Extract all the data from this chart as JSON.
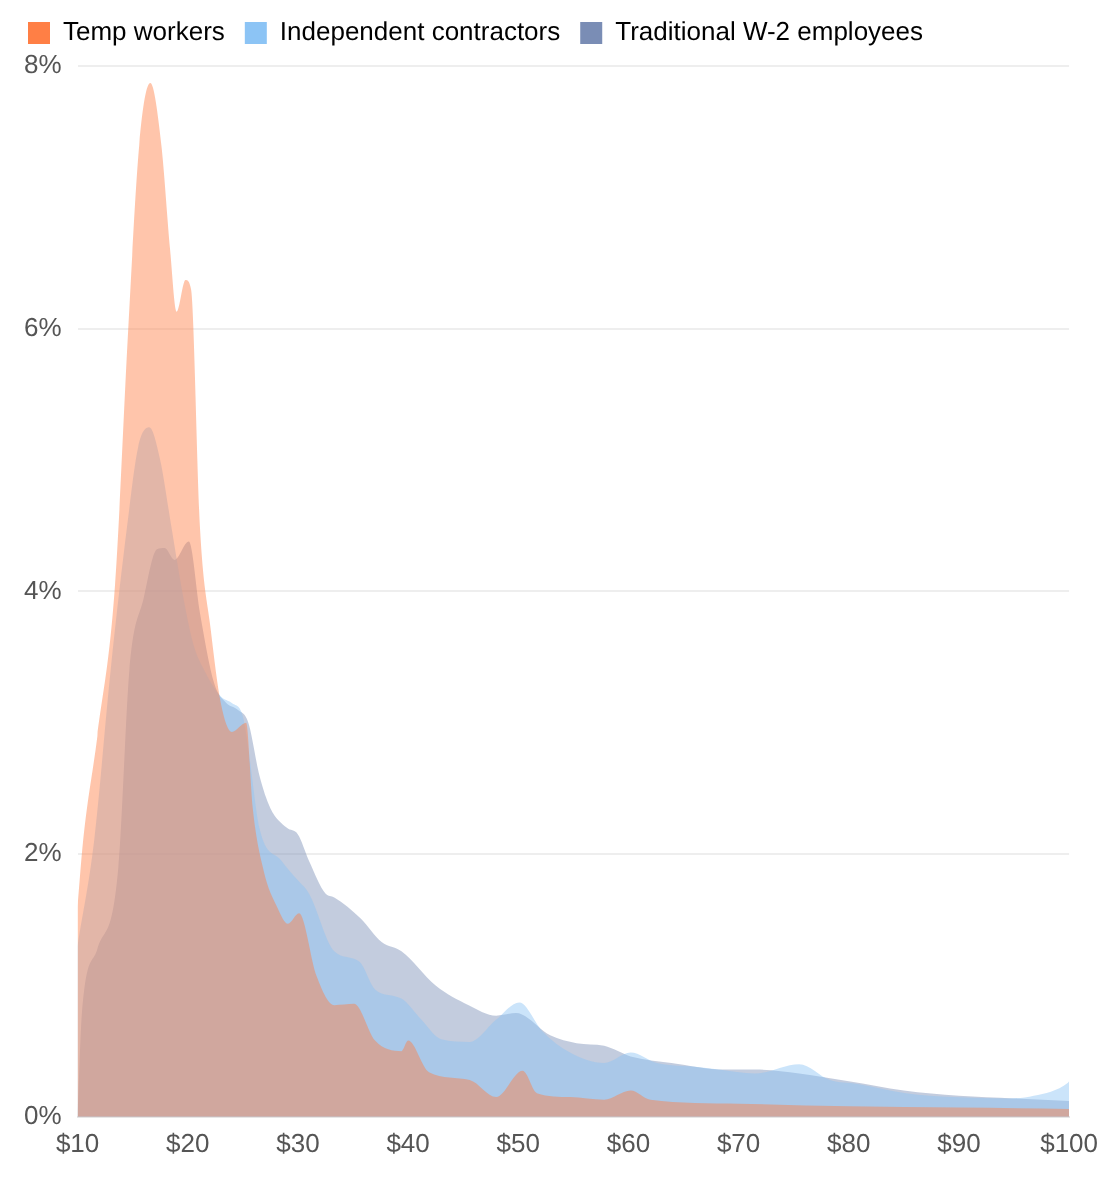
{
  "chart_data": {
    "type": "area",
    "xlim": [
      10,
      100
    ],
    "ylim": [
      0,
      8
    ],
    "xticks": [
      {
        "value": 10,
        "label": "$10"
      },
      {
        "value": 20,
        "label": "$20"
      },
      {
        "value": 30,
        "label": "$30"
      },
      {
        "value": 40,
        "label": "$40"
      },
      {
        "value": 50,
        "label": "$50"
      },
      {
        "value": 60,
        "label": "$60"
      },
      {
        "value": 70,
        "label": "$70"
      },
      {
        "value": 80,
        "label": "$80"
      },
      {
        "value": 90,
        "label": "$90"
      },
      {
        "value": 100,
        "label": "$100"
      }
    ],
    "yticks": [
      {
        "value": 0,
        "label": "0%"
      },
      {
        "value": 2,
        "label": "2%"
      },
      {
        "value": 4,
        "label": "4%"
      },
      {
        "value": 6,
        "label": "6%"
      },
      {
        "value": 8,
        "label": "8%"
      }
    ],
    "grid": "y",
    "legend": "top left",
    "marker": "none",
    "series": [
      {
        "name": "Temp workers",
        "color": "#ff7f45",
        "x": [
          10,
          10.5,
          11.8,
          13.4,
          14.6,
          15.6,
          16.6,
          17.6,
          18.4,
          19,
          19.8,
          20.3,
          21.1,
          22.1,
          23,
          24,
          25.3,
          25.9,
          26.9,
          28.1,
          29.1,
          30.1,
          31.7,
          33.3,
          35.1,
          37,
          39.4,
          40,
          41.9,
          45.6,
          48,
          50.4,
          51.7,
          54.7,
          57.8,
          60.2,
          62,
          70,
          80,
          90,
          100
        ],
        "values": [
          1.6,
          2.1,
          2.9,
          4.05,
          6,
          7.4,
          7.87,
          7.4,
          6.6,
          6.13,
          6.37,
          6.3,
          4.5,
          3.7,
          3.15,
          2.93,
          3,
          2.35,
          1.87,
          1.6,
          1.47,
          1.55,
          1.07,
          0.85,
          0.86,
          0.58,
          0.5,
          0.58,
          0.34,
          0.28,
          0.15,
          0.35,
          0.18,
          0.15,
          0.13,
          0.2,
          0.13,
          0.1,
          0.08,
          0.07,
          0.06
        ]
      },
      {
        "name": "Independent contractors",
        "color": "#8cc4f5",
        "x": [
          10,
          11.5,
          13,
          14.5,
          15.5,
          16.5,
          17.5,
          18.5,
          19.5,
          20.5,
          21.5,
          23,
          24,
          25,
          25.5,
          26.5,
          28.5,
          30,
          31,
          33.3,
          35.6,
          37,
          39.4,
          41.2,
          43,
          45.6,
          48,
          50.1,
          52.2,
          54.7,
          57.8,
          60.2,
          62.6,
          66.3,
          68.2,
          71.5,
          75.5,
          78.3,
          80.8,
          85.2,
          89.5,
          94.4,
          96.8,
          99.9,
          100
        ],
        "values": [
          1.3,
          2.1,
          3.4,
          4.5,
          5.1,
          5.25,
          5,
          4.5,
          4,
          3.6,
          3.4,
          3.2,
          3.15,
          3.05,
          2.8,
          2.2,
          1.95,
          1.8,
          1.7,
          1.26,
          1.18,
          0.97,
          0.9,
          0.74,
          0.59,
          0.57,
          0.74,
          0.87,
          0.65,
          0.49,
          0.41,
          0.49,
          0.41,
          0.38,
          0.36,
          0.33,
          0.4,
          0.28,
          0.25,
          0.18,
          0.15,
          0.14,
          0.16,
          0.26,
          0.27
        ]
      },
      {
        "name": "Traditional W-2 employees",
        "color": "#7a8db5",
        "x": [
          10,
          10.4,
          11.8,
          13.7,
          14.7,
          16,
          17.2,
          17.9,
          18.8,
          20.1,
          21.1,
          22.4,
          23.5,
          24.5,
          25.5,
          26.5,
          27.5,
          29,
          30,
          31,
          32.5,
          33.3,
          35.7,
          37.6,
          39.4,
          42.5,
          45.5,
          48,
          49.8,
          52.9,
          55.3,
          57.8,
          60.2,
          63.9,
          68.8,
          71.5,
          75.5,
          80,
          85,
          90,
          95,
          100
        ],
        "values": [
          0,
          0.8,
          1.28,
          1.9,
          3.4,
          3.95,
          4.32,
          4.33,
          4.24,
          4.38,
          3.84,
          3.3,
          3.15,
          3.1,
          3,
          2.6,
          2.35,
          2.2,
          2.15,
          1.95,
          1.7,
          1.67,
          1.51,
          1.33,
          1.26,
          1,
          0.85,
          0.77,
          0.79,
          0.62,
          0.56,
          0.54,
          0.46,
          0.41,
          0.36,
          0.36,
          0.33,
          0.27,
          0.2,
          0.16,
          0.14,
          0.12
        ]
      }
    ]
  }
}
